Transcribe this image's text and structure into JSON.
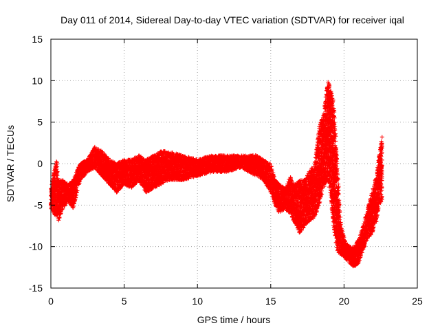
{
  "chart_data": {
    "type": "scatter",
    "title": "Day 011 of 2014, Sidereal Day-to-day VTEC variation (SDTVAR) for receiver iqal",
    "xlabel": "GPS time / hours",
    "ylabel": "SDTVAR / TECUs",
    "xlim": [
      0,
      25
    ],
    "ylim": [
      -15,
      15
    ],
    "xticks": [
      0,
      5,
      10,
      15,
      20,
      25
    ],
    "yticks": [
      -15,
      -10,
      -5,
      0,
      5,
      10,
      15
    ],
    "xtick_labels": [
      "0",
      "5",
      "10",
      "15",
      "20",
      "25"
    ],
    "ytick_labels": [
      "-15",
      "-10",
      "-5",
      "0",
      "5",
      "10",
      "15"
    ],
    "grid": true,
    "marker": "+",
    "color": "#ff0000",
    "series": [
      {
        "name": "SDTVAR",
        "envelope": {
          "x": [
            0.0,
            0.2,
            0.4,
            0.5,
            0.8,
            1.2,
            1.5,
            2.0,
            2.5,
            3.0,
            3.5,
            4.0,
            4.5,
            5.0,
            5.5,
            6.0,
            6.5,
            7.0,
            7.5,
            8.0,
            9.0,
            10.0,
            11.0,
            12.0,
            13.0,
            14.0,
            14.5,
            15.0,
            15.3,
            15.6,
            16.0,
            16.3,
            16.6,
            17.0,
            17.3,
            17.6,
            18.0,
            18.3,
            18.6,
            18.9,
            19.1,
            19.3,
            19.5,
            19.8,
            20.1,
            20.4,
            20.7,
            21.0,
            21.3,
            21.6,
            21.9,
            22.2,
            22.4,
            22.6
          ],
          "low": [
            -5.5,
            -6.0,
            -6.5,
            -7.0,
            -5.5,
            -4.5,
            -5.5,
            -2.0,
            -1.0,
            -0.5,
            -1.5,
            -2.5,
            -3.5,
            -2.5,
            -3.0,
            -2.0,
            -3.5,
            -3.0,
            -2.5,
            -2.0,
            -2.0,
            -1.5,
            -1.0,
            -1.0,
            -0.5,
            -1.5,
            -2.0,
            -3.5,
            -5.0,
            -6.0,
            -5.5,
            -6.0,
            -7.0,
            -8.5,
            -7.5,
            -7.0,
            -6.5,
            -5.0,
            -3.0,
            -2.0,
            -4.0,
            -8.0,
            -10.5,
            -11.0,
            -11.5,
            -12.0,
            -12.5,
            -12.0,
            -10.5,
            -9.0,
            -8.5,
            -7.0,
            -5.0,
            -4.5
          ],
          "high": [
            -3.0,
            -1.0,
            0.5,
            -2.0,
            -2.0,
            -2.5,
            -2.0,
            0.0,
            0.5,
            2.0,
            1.5,
            0.5,
            0.0,
            0.5,
            0.5,
            1.0,
            0.5,
            1.0,
            1.5,
            1.5,
            1.0,
            0.5,
            1.0,
            1.0,
            1.0,
            1.0,
            0.5,
            0.0,
            -2.0,
            -2.5,
            -3.0,
            -1.5,
            -2.5,
            -2.0,
            -2.0,
            -1.0,
            0.0,
            4.5,
            6.0,
            10.0,
            9.0,
            7.5,
            1.0,
            -7.5,
            -9.5,
            -10.0,
            -10.0,
            -9.0,
            -7.5,
            -5.5,
            -3.5,
            -1.5,
            1.0,
            3.5
          ]
        }
      }
    ]
  }
}
